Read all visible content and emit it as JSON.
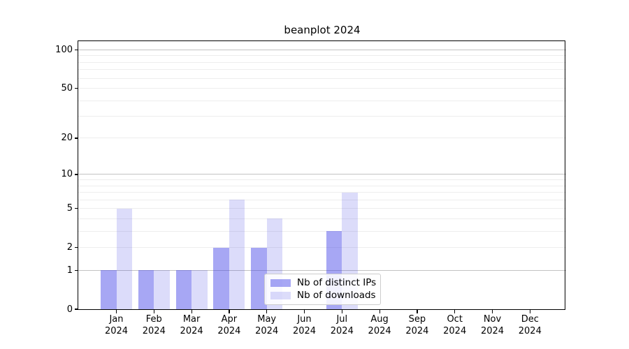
{
  "title": "beanplot 2024",
  "chart_data": {
    "type": "bar",
    "title": "beanplot 2024",
    "categories": [
      "Jan",
      "Feb",
      "Mar",
      "Apr",
      "May",
      "Jun",
      "Jul",
      "Aug",
      "Sep",
      "Oct",
      "Nov",
      "Dec"
    ],
    "x_year_label": "2024",
    "series": [
      {
        "name": "Nb of distinct IPs",
        "color": "rgba(60,60,230,0.45)",
        "solid_hex": "#a8a8f2",
        "values": [
          1,
          1,
          1,
          2,
          2,
          0,
          3,
          0,
          0,
          0,
          0,
          0
        ]
      },
      {
        "name": "Nb of downloads",
        "color": "rgba(60,60,230,0.18)",
        "solid_hex": "#dcdcf8",
        "values": [
          5,
          1,
          1,
          6,
          4,
          0,
          7,
          0,
          0,
          0,
          0,
          0
        ]
      }
    ],
    "yscale": "log1p",
    "ylim": [
      0,
      117
    ],
    "yticks": [
      0,
      1,
      2,
      5,
      10,
      20,
      50,
      100
    ],
    "major_gridlines": [
      1,
      10,
      100
    ],
    "minor_gridlines": [
      2,
      3,
      4,
      5,
      6,
      7,
      8,
      9,
      20,
      30,
      40,
      50,
      60,
      70,
      80,
      90
    ],
    "grid": true,
    "grid_color_major": "#c4c4c4",
    "grid_color_minor": "#ededed",
    "legend": {
      "position": "inside-bottom-center",
      "items": [
        "Nb of distinct IPs",
        "Nb of downloads"
      ]
    }
  }
}
